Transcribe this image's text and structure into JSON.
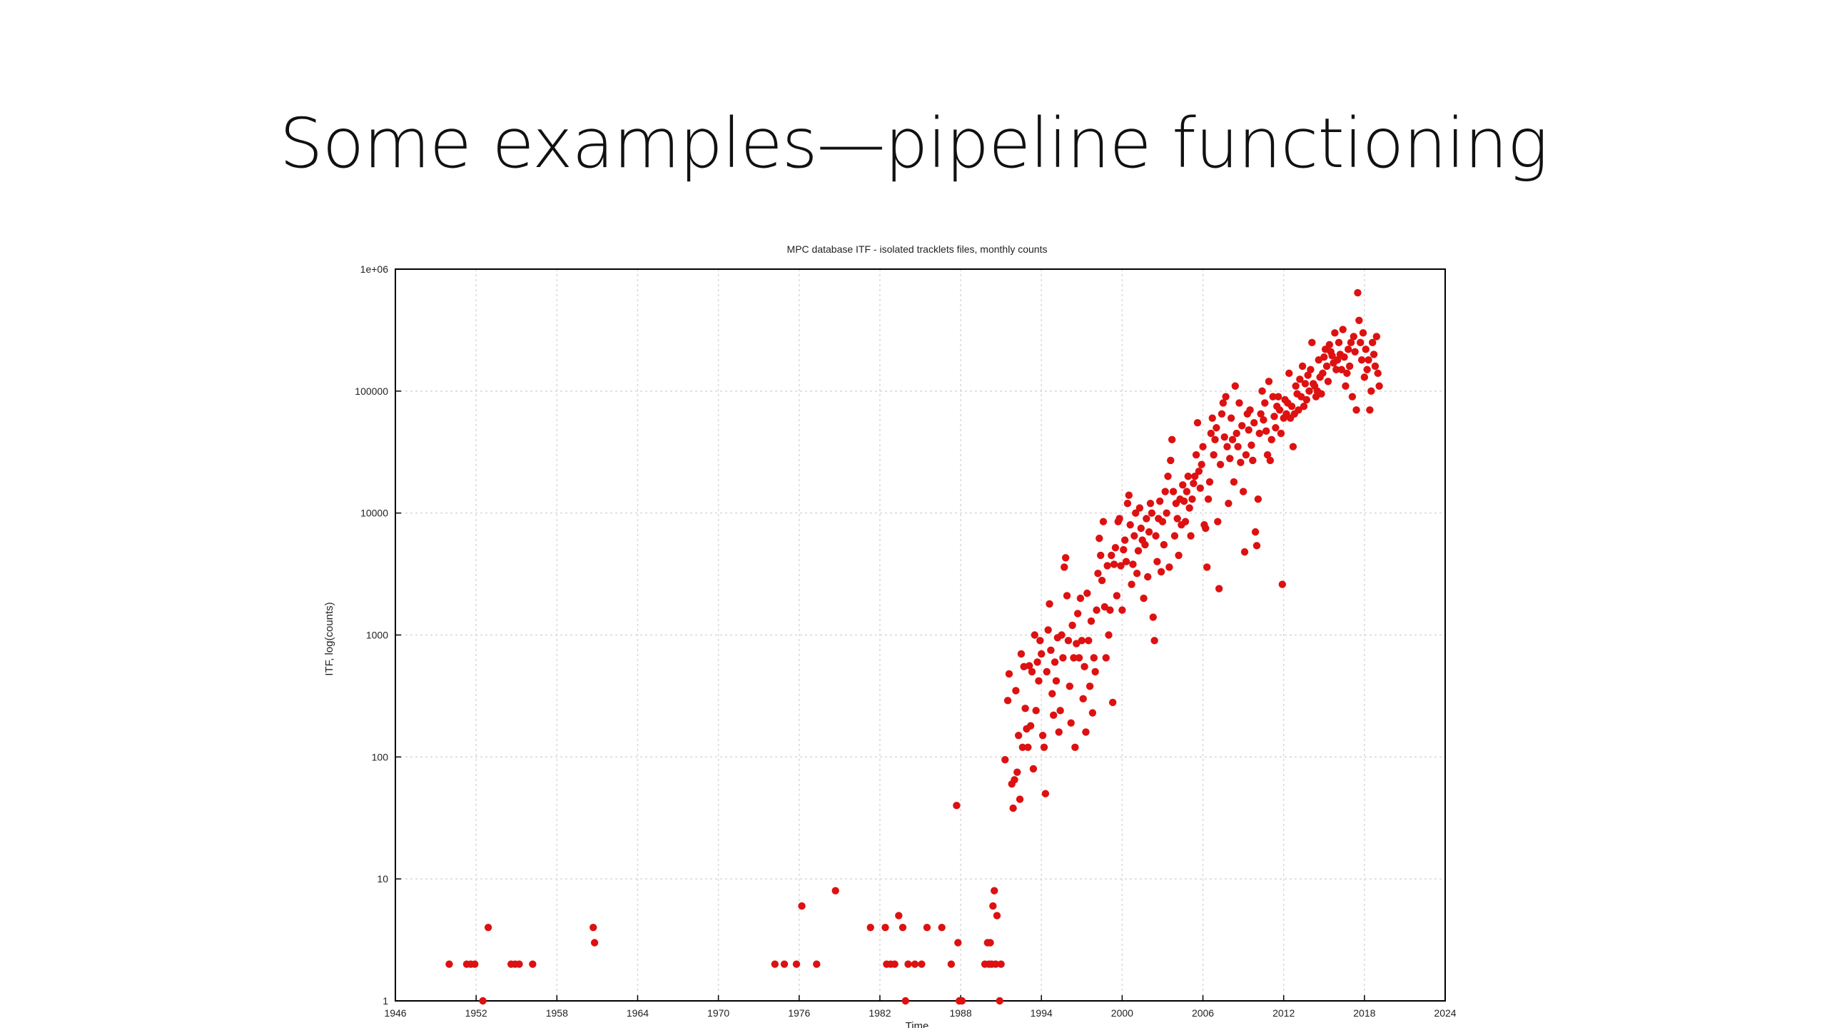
{
  "slide": {
    "title": "Some examples—pipeline functioning"
  },
  "chart_data": {
    "type": "scatter",
    "title": "MPC database ITF - isolated tracklets files, monthly counts",
    "xlabel": "Time",
    "ylabel": "ITF, log(counts)",
    "xlim": [
      1946,
      2024
    ],
    "ylim": [
      1,
      1000000
    ],
    "y_scale": "log",
    "grid": true,
    "legend": "none",
    "marker_color": "#dd1111",
    "x_ticks": [
      "1946",
      "1952",
      "1958",
      "1964",
      "1970",
      "1976",
      "1982",
      "1988",
      "1994",
      "2000",
      "2006",
      "2012",
      "2018",
      "2024"
    ],
    "y_ticks": [
      "1",
      "10",
      "100",
      "1000",
      "10000",
      "100000",
      "1e+06"
    ],
    "points": [
      [
        1950.0,
        2
      ],
      [
        1951.3,
        2
      ],
      [
        1951.6,
        2
      ],
      [
        1951.9,
        2
      ],
      [
        1952.5,
        1
      ],
      [
        1952.9,
        4
      ],
      [
        1954.6,
        2
      ],
      [
        1954.9,
        2
      ],
      [
        1955.2,
        2
      ],
      [
        1956.2,
        2
      ],
      [
        1960.7,
        4
      ],
      [
        1960.8,
        3
      ],
      [
        1974.2,
        2
      ],
      [
        1974.9,
        2
      ],
      [
        1975.8,
        2
      ],
      [
        1976.2,
        6
      ],
      [
        1977.3,
        2
      ],
      [
        1978.7,
        8
      ],
      [
        1981.3,
        4
      ],
      [
        1982.4,
        4
      ],
      [
        1982.5,
        2
      ],
      [
        1982.8,
        2
      ],
      [
        1983.1,
        2
      ],
      [
        1983.4,
        5
      ],
      [
        1983.7,
        4
      ],
      [
        1983.9,
        1
      ],
      [
        1984.1,
        2
      ],
      [
        1984.6,
        2
      ],
      [
        1985.1,
        2
      ],
      [
        1985.5,
        4
      ],
      [
        1986.6,
        4
      ],
      [
        1987.3,
        2
      ],
      [
        1987.7,
        40
      ],
      [
        1987.8,
        3
      ],
      [
        1987.9,
        1
      ],
      [
        1988.1,
        1
      ],
      [
        1989.8,
        2
      ],
      [
        1990.0,
        3
      ],
      [
        1990.1,
        2
      ],
      [
        1990.2,
        3
      ],
      [
        1990.3,
        2
      ],
      [
        1990.4,
        6
      ],
      [
        1990.5,
        8
      ],
      [
        1990.6,
        2
      ],
      [
        1990.7,
        5
      ],
      [
        1990.9,
        1
      ],
      [
        1991.0,
        2
      ],
      [
        1991.3,
        95
      ],
      [
        1991.5,
        290
      ],
      [
        1991.6,
        480
      ],
      [
        1991.8,
        60
      ],
      [
        1991.9,
        38
      ],
      [
        1992.0,
        65
      ],
      [
        1992.1,
        350
      ],
      [
        1992.2,
        75
      ],
      [
        1992.3,
        150
      ],
      [
        1992.4,
        45
      ],
      [
        1992.5,
        700
      ],
      [
        1992.6,
        120
      ],
      [
        1992.7,
        550
      ],
      [
        1992.8,
        250
      ],
      [
        1992.9,
        170
      ],
      [
        1993.0,
        120
      ],
      [
        1993.1,
        560
      ],
      [
        1993.2,
        180
      ],
      [
        1993.3,
        500
      ],
      [
        1993.4,
        80
      ],
      [
        1993.5,
        1000
      ],
      [
        1993.6,
        240
      ],
      [
        1993.7,
        600
      ],
      [
        1993.8,
        420
      ],
      [
        1993.9,
        900
      ],
      [
        1994.0,
        700
      ],
      [
        1994.1,
        150
      ],
      [
        1994.2,
        120
      ],
      [
        1994.3,
        50
      ],
      [
        1994.4,
        500
      ],
      [
        1994.5,
        1100
      ],
      [
        1994.6,
        1800
      ],
      [
        1994.7,
        750
      ],
      [
        1994.8,
        330
      ],
      [
        1994.9,
        220
      ],
      [
        1995.0,
        600
      ],
      [
        1995.1,
        420
      ],
      [
        1995.2,
        950
      ],
      [
        1995.3,
        160
      ],
      [
        1995.4,
        240
      ],
      [
        1995.5,
        1000
      ],
      [
        1995.6,
        650
      ],
      [
        1995.7,
        3600
      ],
      [
        1995.8,
        4300
      ],
      [
        1995.9,
        2100
      ],
      [
        1996.0,
        900
      ],
      [
        1996.1,
        380
      ],
      [
        1996.2,
        190
      ],
      [
        1996.3,
        1200
      ],
      [
        1996.4,
        650
      ],
      [
        1996.5,
        120
      ],
      [
        1996.6,
        850
      ],
      [
        1996.7,
        1500
      ],
      [
        1996.8,
        650
      ],
      [
        1996.9,
        2000
      ],
      [
        1997.0,
        900
      ],
      [
        1997.1,
        300
      ],
      [
        1997.2,
        550
      ],
      [
        1997.3,
        160
      ],
      [
        1997.4,
        2200
      ],
      [
        1997.5,
        900
      ],
      [
        1997.6,
        380
      ],
      [
        1997.7,
        1300
      ],
      [
        1997.8,
        230
      ],
      [
        1997.9,
        650
      ],
      [
        1998.0,
        500
      ],
      [
        1998.1,
        1600
      ],
      [
        1998.2,
        3200
      ],
      [
        1998.3,
        6200
      ],
      [
        1998.4,
        4500
      ],
      [
        1998.5,
        2800
      ],
      [
        1998.6,
        8500
      ],
      [
        1998.7,
        1700
      ],
      [
        1998.8,
        650
      ],
      [
        1998.9,
        3700
      ],
      [
        1999.0,
        1000
      ],
      [
        1999.1,
        1600
      ],
      [
        1999.2,
        4500
      ],
      [
        1999.3,
        280
      ],
      [
        1999.4,
        3800
      ],
      [
        1999.5,
        5200
      ],
      [
        1999.6,
        2100
      ],
      [
        1999.7,
        8500
      ],
      [
        1999.8,
        9000
      ],
      [
        1999.9,
        3700
      ],
      [
        2000.0,
        1600
      ],
      [
        2000.1,
        5000
      ],
      [
        2000.2,
        6000
      ],
      [
        2000.3,
        4000
      ],
      [
        2000.4,
        12000
      ],
      [
        2000.5,
        14000
      ],
      [
        2000.6,
        8000
      ],
      [
        2000.7,
        2600
      ],
      [
        2000.8,
        3800
      ],
      [
        2000.9,
        6500
      ],
      [
        2001.0,
        10000
      ],
      [
        2001.1,
        3200
      ],
      [
        2001.2,
        4900
      ],
      [
        2001.3,
        11000
      ],
      [
        2001.4,
        7500
      ],
      [
        2001.5,
        6000
      ],
      [
        2001.6,
        2000
      ],
      [
        2001.7,
        5500
      ],
      [
        2001.8,
        9000
      ],
      [
        2001.9,
        3000
      ],
      [
        2002.0,
        7000
      ],
      [
        2002.1,
        12000
      ],
      [
        2002.2,
        10000
      ],
      [
        2002.3,
        1400
      ],
      [
        2002.4,
        900
      ],
      [
        2002.5,
        6500
      ],
      [
        2002.6,
        4000
      ],
      [
        2002.7,
        9000
      ],
      [
        2002.8,
        12500
      ],
      [
        2002.9,
        3300
      ],
      [
        2003.0,
        8500
      ],
      [
        2003.1,
        5500
      ],
      [
        2003.2,
        15000
      ],
      [
        2003.3,
        10000
      ],
      [
        2003.4,
        20000
      ],
      [
        2003.5,
        3600
      ],
      [
        2003.6,
        27000
      ],
      [
        2003.7,
        40000
      ],
      [
        2003.8,
        15000
      ],
      [
        2003.9,
        6500
      ],
      [
        2004.0,
        12000
      ],
      [
        2004.1,
        9000
      ],
      [
        2004.2,
        4500
      ],
      [
        2004.3,
        13000
      ],
      [
        2004.4,
        8000
      ],
      [
        2004.5,
        17000
      ],
      [
        2004.6,
        12500
      ],
      [
        2004.7,
        8500
      ],
      [
        2004.8,
        15000
      ],
      [
        2004.9,
        20000
      ],
      [
        2005.0,
        11000
      ],
      [
        2005.1,
        6500
      ],
      [
        2005.2,
        13000
      ],
      [
        2005.3,
        17500
      ],
      [
        2005.4,
        20000
      ],
      [
        2005.5,
        30000
      ],
      [
        2005.6,
        55000
      ],
      [
        2005.7,
        22000
      ],
      [
        2005.8,
        16000
      ],
      [
        2005.9,
        25000
      ],
      [
        2006.0,
        35000
      ],
      [
        2006.1,
        8000
      ],
      [
        2006.2,
        7500
      ],
      [
        2006.3,
        3600
      ],
      [
        2006.4,
        13000
      ],
      [
        2006.5,
        18000
      ],
      [
        2006.6,
        45000
      ],
      [
        2006.7,
        60000
      ],
      [
        2006.8,
        30000
      ],
      [
        2006.9,
        40000
      ],
      [
        2007.0,
        50000
      ],
      [
        2007.1,
        8500
      ],
      [
        2007.2,
        2400
      ],
      [
        2007.3,
        25000
      ],
      [
        2007.4,
        65000
      ],
      [
        2007.5,
        80000
      ],
      [
        2007.6,
        42000
      ],
      [
        2007.7,
        90000
      ],
      [
        2007.8,
        35000
      ],
      [
        2007.9,
        12000
      ],
      [
        2008.0,
        28000
      ],
      [
        2008.1,
        60000
      ],
      [
        2008.2,
        40000
      ],
      [
        2008.3,
        18000
      ],
      [
        2008.4,
        110000
      ],
      [
        2008.5,
        45000
      ],
      [
        2008.6,
        35000
      ],
      [
        2008.7,
        80000
      ],
      [
        2008.8,
        26000
      ],
      [
        2008.9,
        52000
      ],
      [
        2009.0,
        15000
      ],
      [
        2009.1,
        4800
      ],
      [
        2009.2,
        30000
      ],
      [
        2009.3,
        65000
      ],
      [
        2009.4,
        48000
      ],
      [
        2009.5,
        70000
      ],
      [
        2009.6,
        36000
      ],
      [
        2009.7,
        27000
      ],
      [
        2009.8,
        55000
      ],
      [
        2009.9,
        7000
      ],
      [
        2010.0,
        5400
      ],
      [
        2010.1,
        13000
      ],
      [
        2010.2,
        45000
      ],
      [
        2010.3,
        65000
      ],
      [
        2010.4,
        100000
      ],
      [
        2010.5,
        58000
      ],
      [
        2010.6,
        80000
      ],
      [
        2010.7,
        47000
      ],
      [
        2010.8,
        30000
      ],
      [
        2010.9,
        120000
      ],
      [
        2011.0,
        27000
      ],
      [
        2011.1,
        40000
      ],
      [
        2011.2,
        90000
      ],
      [
        2011.3,
        62000
      ],
      [
        2011.4,
        50000
      ],
      [
        2011.5,
        75000
      ],
      [
        2011.6,
        90000
      ],
      [
        2011.7,
        70000
      ],
      [
        2011.8,
        45000
      ],
      [
        2011.9,
        2600
      ],
      [
        2012.0,
        60000
      ],
      [
        2012.1,
        85000
      ],
      [
        2012.2,
        65000
      ],
      [
        2012.3,
        80000
      ],
      [
        2012.4,
        140000
      ],
      [
        2012.5,
        60000
      ],
      [
        2012.6,
        75000
      ],
      [
        2012.7,
        35000
      ],
      [
        2012.8,
        65000
      ],
      [
        2012.9,
        110000
      ],
      [
        2013.0,
        95000
      ],
      [
        2013.1,
        70000
      ],
      [
        2013.2,
        125000
      ],
      [
        2013.3,
        90000
      ],
      [
        2013.4,
        160000
      ],
      [
        2013.5,
        75000
      ],
      [
        2013.6,
        115000
      ],
      [
        2013.7,
        85000
      ],
      [
        2013.8,
        135000
      ],
      [
        2013.9,
        100000
      ],
      [
        2014.0,
        150000
      ],
      [
        2014.1,
        250000
      ],
      [
        2014.2,
        115000
      ],
      [
        2014.3,
        110000
      ],
      [
        2014.4,
        90000
      ],
      [
        2014.5,
        100000
      ],
      [
        2014.6,
        180000
      ],
      [
        2014.7,
        130000
      ],
      [
        2014.8,
        95000
      ],
      [
        2014.9,
        140000
      ],
      [
        2015.0,
        190000
      ],
      [
        2015.1,
        220000
      ],
      [
        2015.2,
        160000
      ],
      [
        2015.3,
        120000
      ],
      [
        2015.4,
        240000
      ],
      [
        2015.5,
        210000
      ],
      [
        2015.6,
        195000
      ],
      [
        2015.7,
        170000
      ],
      [
        2015.8,
        300000
      ],
      [
        2015.9,
        150000
      ],
      [
        2016.0,
        180000
      ],
      [
        2016.1,
        250000
      ],
      [
        2016.2,
        200000
      ],
      [
        2016.3,
        150000
      ],
      [
        2016.4,
        320000
      ],
      [
        2016.5,
        190000
      ],
      [
        2016.6,
        110000
      ],
      [
        2016.7,
        140000
      ],
      [
        2016.8,
        220000
      ],
      [
        2016.9,
        160000
      ],
      [
        2017.0,
        250000
      ],
      [
        2017.1,
        90000
      ],
      [
        2017.2,
        280000
      ],
      [
        2017.3,
        210000
      ],
      [
        2017.4,
        70000
      ],
      [
        2017.5,
        640000
      ],
      [
        2017.6,
        380000
      ],
      [
        2017.7,
        250000
      ],
      [
        2017.8,
        180000
      ],
      [
        2017.9,
        300000
      ],
      [
        2018.0,
        130000
      ],
      [
        2018.1,
        220000
      ],
      [
        2018.2,
        150000
      ],
      [
        2018.3,
        180000
      ],
      [
        2018.4,
        70000
      ],
      [
        2018.5,
        100000
      ],
      [
        2018.6,
        250000
      ],
      [
        2018.7,
        200000
      ],
      [
        2018.8,
        160000
      ],
      [
        2018.9,
        280000
      ],
      [
        2019.0,
        140000
      ],
      [
        2019.1,
        110000
      ]
    ]
  }
}
